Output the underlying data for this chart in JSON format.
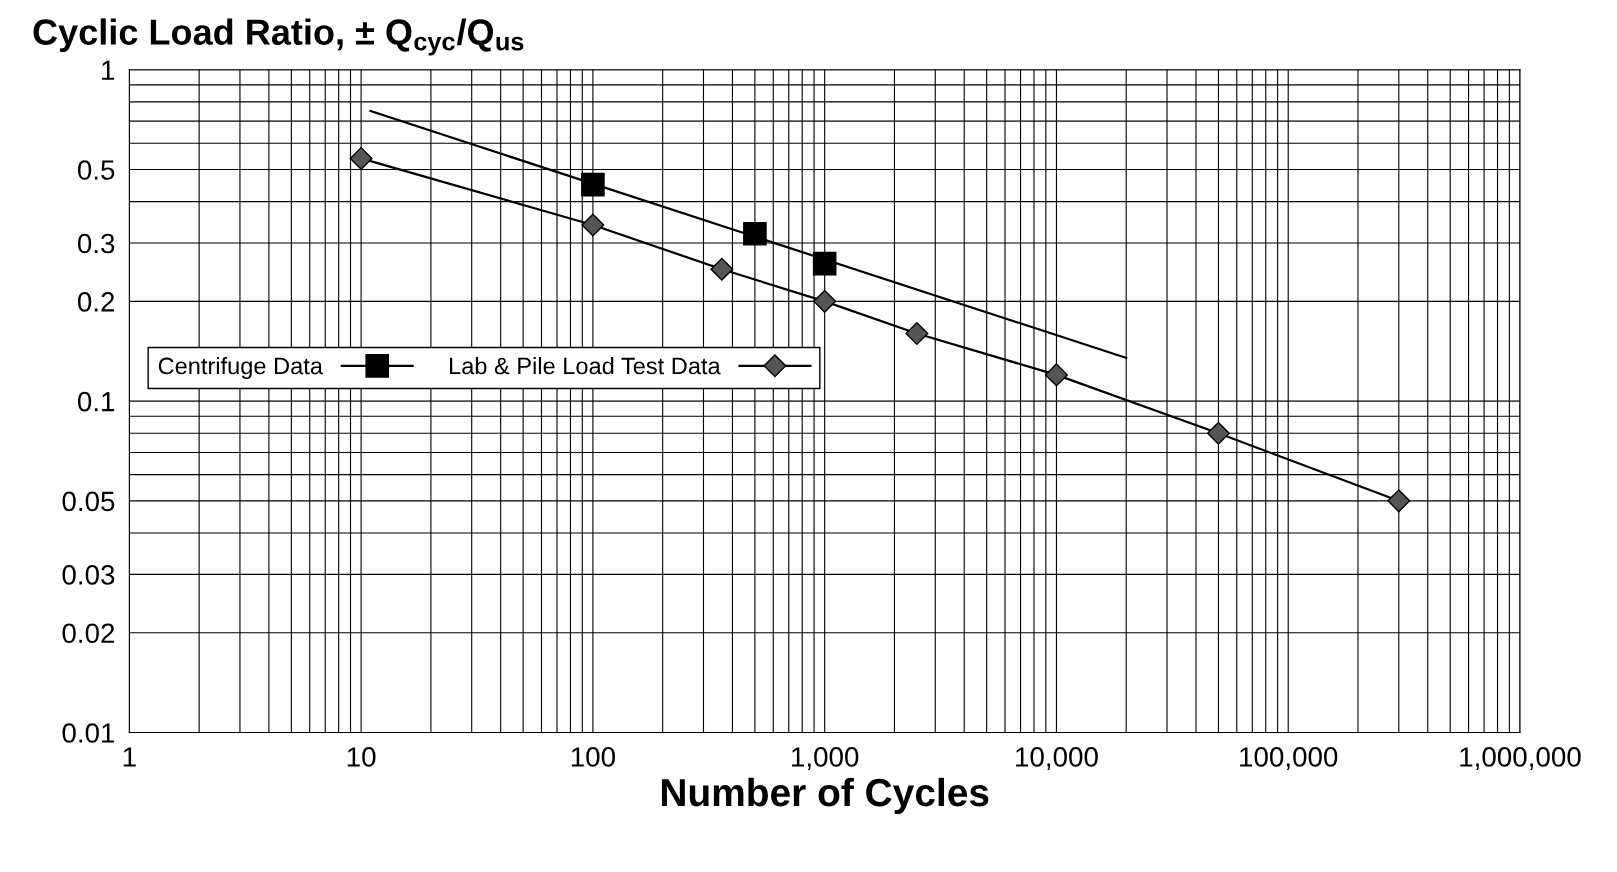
{
  "chart_data": {
    "type": "scatter",
    "title": "Cyclic Load Ratio, ± Q$_{cyc}$/Q$_{us}$",
    "xlabel": "Number of Cycles",
    "log": "xy",
    "grid": true,
    "legend": "left",
    "xlim": [
      1,
      1000000
    ],
    "ylim": [
      0.01,
      1
    ],
    "xticks": [
      1,
      10,
      100,
      {
        "value": 1000,
        "label": "1,000"
      },
      {
        "value": 10000,
        "label": "10,000"
      },
      {
        "value": 100000,
        "label": "100,000"
      },
      {
        "value": 1000000,
        "label": "1,000,000"
      }
    ],
    "yticks": [
      0.01,
      0.02,
      0.03,
      0.05,
      0.1,
      0.2,
      0.3,
      0.5,
      1
    ],
    "series": [
      {
        "name": "Centrifuge Data",
        "marker": "square",
        "color": "#000000",
        "x": [
          100,
          500,
          1000
        ],
        "values": [
          0.45,
          0.32,
          0.26
        ]
      },
      {
        "type": "line",
        "marker": "none",
        "color": "#000000",
        "x": [
          11,
          20000
        ],
        "values": [
          0.75,
          0.135
        ]
      },
      {
        "name": "Lab & Pile Load Test Data",
        "type": "line",
        "marker": "diamond",
        "color": "#000000",
        "x": [
          10,
          100,
          360,
          1000,
          2500,
          10000,
          50000,
          300000
        ],
        "values": [
          0.54,
          0.34,
          0.25,
          0.2,
          0.16,
          0.12,
          0.08,
          0.05
        ]
      }
    ]
  }
}
